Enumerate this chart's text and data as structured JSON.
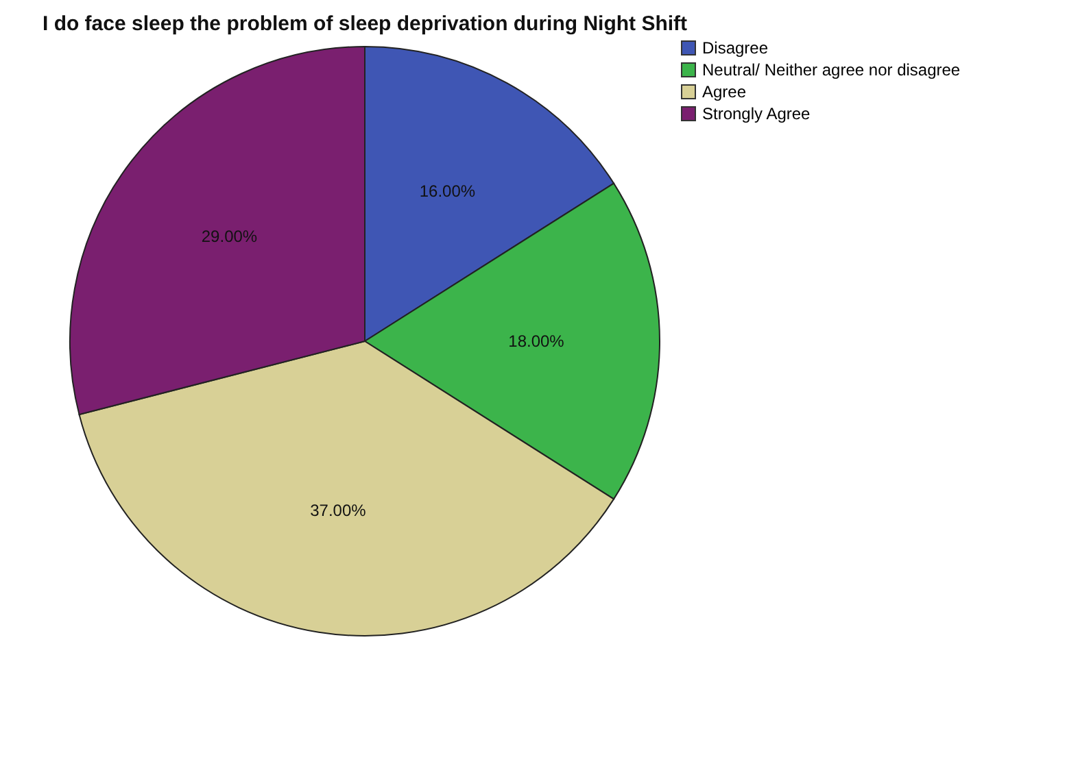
{
  "chart_data": {
    "type": "pie",
    "title": "I do face sleep the problem of sleep deprivation during Night Shift",
    "categories": [
      "Disagree",
      "Neutral/ Neither agree nor disagree",
      "Agree",
      "Strongly Agree"
    ],
    "values": [
      16,
      18,
      37,
      29
    ],
    "colors": [
      "#3f56b4",
      "#3cb44b",
      "#d8d096",
      "#7a1f6f"
    ],
    "value_labels": [
      "16.00%",
      "18.00%",
      "37.00%",
      "29.00%"
    ],
    "legend": "top right"
  }
}
